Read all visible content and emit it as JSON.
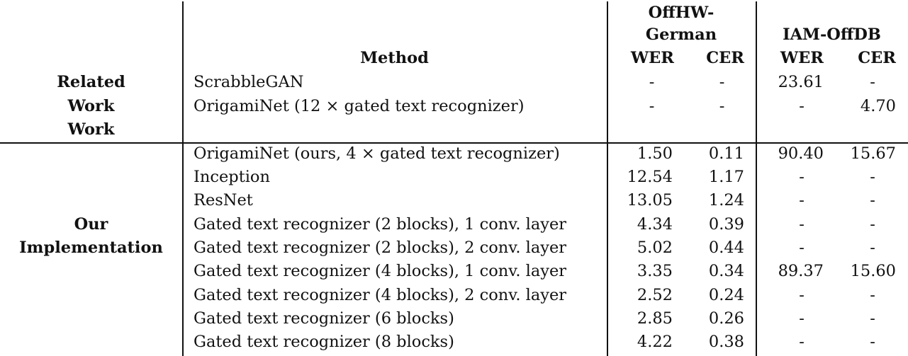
{
  "table": {
    "header": {
      "method": "Method",
      "group1": [
        "OffHW-",
        "German"
      ],
      "group2": "IAM-OffDB",
      "wer": "WER",
      "cer": "CER"
    },
    "sections": [
      {
        "label_lines": [
          "Related",
          "Work",
          "Work"
        ],
        "rows": [
          {
            "method": "ScrabbleGAN",
            "offhw_wer": "-",
            "offhw_cer": "-",
            "iam_wer": "23.61",
            "iam_cer": "-"
          },
          {
            "method": "OrigamiNet (12 × gated text recognizer)",
            "offhw_wer": "-",
            "offhw_cer": "-",
            "iam_wer": "-",
            "iam_cer": "4.70"
          },
          {
            "method": "",
            "offhw_wer": "",
            "offhw_cer": "",
            "iam_wer": "",
            "iam_cer": ""
          }
        ]
      },
      {
        "label_lines": [
          "Our",
          "Implementation"
        ],
        "rows": [
          {
            "method": "OrigamiNet (ours, 4 × gated text recognizer)",
            "offhw_wer": "1.50",
            "offhw_cer": "0.11",
            "iam_wer": "90.40",
            "iam_cer": "15.67"
          },
          {
            "method": "Inception",
            "offhw_wer": "12.54",
            "offhw_cer": "1.17",
            "iam_wer": "-",
            "iam_cer": "-"
          },
          {
            "method": "ResNet",
            "offhw_wer": "13.05",
            "offhw_cer": "1.24",
            "iam_wer": "-",
            "iam_cer": "-"
          },
          {
            "method": "Gated text recognizer (2 blocks), 1 conv. layer",
            "offhw_wer": "4.34",
            "offhw_cer": "0.39",
            "iam_wer": "-",
            "iam_cer": "-"
          },
          {
            "method": "Gated text recognizer (2 blocks), 2 conv. layer",
            "offhw_wer": "5.02",
            "offhw_cer": "0.44",
            "iam_wer": "-",
            "iam_cer": "-"
          },
          {
            "method": "Gated text recognizer (4 blocks), 1 conv. layer",
            "offhw_wer": "3.35",
            "offhw_cer": "0.34",
            "iam_wer": "89.37",
            "iam_cer": "15.60"
          },
          {
            "method": "Gated text recognizer (4 blocks), 2 conv. layer",
            "offhw_wer": "2.52",
            "offhw_cer": "0.24",
            "iam_wer": "-",
            "iam_cer": "-"
          },
          {
            "method": "Gated text recognizer (6 blocks)",
            "offhw_wer": "2.85",
            "offhw_cer": "0.26",
            "iam_wer": "-",
            "iam_cer": "-"
          },
          {
            "method": "Gated text recognizer (8 blocks)",
            "offhw_wer": "4.22",
            "offhw_cer": "0.38",
            "iam_wer": "-",
            "iam_cer": "-"
          }
        ]
      }
    ]
  }
}
